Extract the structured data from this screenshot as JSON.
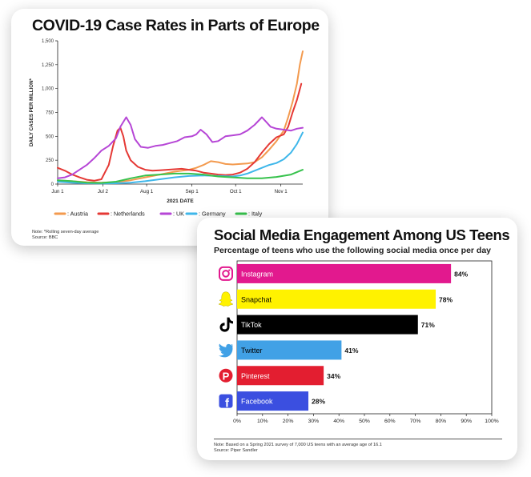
{
  "covid": {
    "title": "COVID-19 Case Rates in Parts of Europe",
    "note": "Note: *Rolling seven-day average",
    "source": "Source: BBC"
  },
  "social": {
    "title": "Social Media Engagement Among US Teens",
    "subtitle": "Percentage of teens who use the following social media once per day",
    "note": "Note: Based on a Spring 2021 survey of 7,000 US teens with an average age of 16.1",
    "source": "Source: Piper Sandler"
  },
  "chart_data": [
    {
      "type": "line",
      "title": "COVID-19 Case Rates in Parts of Europe",
      "xlabel": "2021 DATE",
      "ylabel": "DAILY CASES PER MILLION*",
      "x_ticks": [
        "Jun 1",
        "Jul 2",
        "Aug 1",
        "Sep 1",
        "Oct 1",
        "Nov 1"
      ],
      "x_range_days": [
        0,
        168
      ],
      "x_tick_days": [
        0,
        31,
        61,
        92,
        122,
        153
      ],
      "ylim": [
        0,
        1500
      ],
      "y_ticks": [
        0,
        250,
        500,
        750,
        "1,000",
        "1,250",
        "1,500"
      ],
      "grid": false,
      "legend_position": "bottom",
      "series": [
        {
          "name": ": Austria",
          "color": "#f39a4e",
          "points": [
            [
              0,
              40
            ],
            [
              10,
              30
            ],
            [
              20,
              20
            ],
            [
              30,
              15
            ],
            [
              40,
              20
            ],
            [
              50,
              40
            ],
            [
              60,
              70
            ],
            [
              70,
              100
            ],
            [
              80,
              130
            ],
            [
              90,
              150
            ],
            [
              95,
              170
            ],
            [
              100,
              200
            ],
            [
              105,
              240
            ],
            [
              110,
              230
            ],
            [
              115,
              210
            ],
            [
              120,
              205
            ],
            [
              125,
              210
            ],
            [
              130,
              215
            ],
            [
              135,
              230
            ],
            [
              140,
              280
            ],
            [
              145,
              360
            ],
            [
              150,
              450
            ],
            [
              155,
              560
            ],
            [
              158,
              700
            ],
            [
              161,
              860
            ],
            [
              164,
              1050
            ],
            [
              166,
              1250
            ],
            [
              168,
              1390
            ]
          ]
        },
        {
          "name": ": Netherlands",
          "color": "#e53935",
          "points": [
            [
              0,
              170
            ],
            [
              5,
              140
            ],
            [
              10,
              100
            ],
            [
              15,
              70
            ],
            [
              20,
              45
            ],
            [
              25,
              35
            ],
            [
              30,
              50
            ],
            [
              35,
              200
            ],
            [
              38,
              400
            ],
            [
              41,
              560
            ],
            [
              43,
              590
            ],
            [
              45,
              500
            ],
            [
              47,
              350
            ],
            [
              50,
              250
            ],
            [
              55,
              180
            ],
            [
              60,
              150
            ],
            [
              65,
              140
            ],
            [
              70,
              145
            ],
            [
              75,
              150
            ],
            [
              80,
              155
            ],
            [
              85,
              160
            ],
            [
              90,
              150
            ],
            [
              95,
              140
            ],
            [
              100,
              120
            ],
            [
              105,
              110
            ],
            [
              110,
              100
            ],
            [
              115,
              95
            ],
            [
              120,
              100
            ],
            [
              125,
              120
            ],
            [
              130,
              160
            ],
            [
              135,
              230
            ],
            [
              140,
              330
            ],
            [
              145,
              420
            ],
            [
              150,
              490
            ],
            [
              155,
              520
            ],
            [
              158,
              600
            ],
            [
              161,
              750
            ],
            [
              164,
              880
            ],
            [
              167,
              1050
            ]
          ]
        },
        {
          "name": ": UK",
          "color": "#b646d6",
          "points": [
            [
              0,
              60
            ],
            [
              5,
              70
            ],
            [
              10,
              100
            ],
            [
              15,
              150
            ],
            [
              20,
              200
            ],
            [
              25,
              270
            ],
            [
              30,
              350
            ],
            [
              35,
              400
            ],
            [
              40,
              480
            ],
            [
              43,
              600
            ],
            [
              47,
              700
            ],
            [
              50,
              620
            ],
            [
              53,
              470
            ],
            [
              57,
              390
            ],
            [
              62,
              380
            ],
            [
              67,
              400
            ],
            [
              72,
              410
            ],
            [
              77,
              430
            ],
            [
              82,
              450
            ],
            [
              87,
              490
            ],
            [
              92,
              500
            ],
            [
              95,
              520
            ],
            [
              98,
              570
            ],
            [
              102,
              520
            ],
            [
              106,
              440
            ],
            [
              110,
              450
            ],
            [
              115,
              500
            ],
            [
              120,
              510
            ],
            [
              125,
              520
            ],
            [
              130,
              560
            ],
            [
              135,
              620
            ],
            [
              140,
              700
            ],
            [
              143,
              650
            ],
            [
              146,
              600
            ],
            [
              150,
              580
            ],
            [
              155,
              570
            ],
            [
              160,
              560
            ],
            [
              164,
              580
            ],
            [
              168,
              590
            ]
          ]
        },
        {
          "name": ": Germany",
          "color": "#3fb7ea",
          "points": [
            [
              0,
              25
            ],
            [
              10,
              15
            ],
            [
              20,
              8
            ],
            [
              30,
              6
            ],
            [
              40,
              8
            ],
            [
              50,
              15
            ],
            [
              60,
              30
            ],
            [
              70,
              50
            ],
            [
              80,
              70
            ],
            [
              90,
              85
            ],
            [
              100,
              90
            ],
            [
              110,
              85
            ],
            [
              120,
              80
            ],
            [
              125,
              90
            ],
            [
              130,
              110
            ],
            [
              135,
              140
            ],
            [
              140,
              170
            ],
            [
              145,
              200
            ],
            [
              150,
              220
            ],
            [
              155,
              260
            ],
            [
              160,
              330
            ],
            [
              164,
              420
            ],
            [
              168,
              540
            ]
          ]
        },
        {
          "name": ": Italy",
          "color": "#37c24d",
          "points": [
            [
              0,
              40
            ],
            [
              10,
              30
            ],
            [
              20,
              15
            ],
            [
              30,
              12
            ],
            [
              40,
              25
            ],
            [
              50,
              60
            ],
            [
              60,
              90
            ],
            [
              70,
              100
            ],
            [
              80,
              110
            ],
            [
              90,
              110
            ],
            [
              100,
              100
            ],
            [
              110,
              80
            ],
            [
              120,
              70
            ],
            [
              130,
              60
            ],
            [
              140,
              60
            ],
            [
              150,
              75
            ],
            [
              160,
              100
            ],
            [
              168,
              150
            ]
          ]
        }
      ]
    },
    {
      "type": "bar",
      "orientation": "horizontal",
      "title": "Social Media Engagement Among US Teens",
      "subtitle": "Percentage of teens who use the following social media once per day",
      "categories": [
        "Instagram",
        "Snapchat",
        "TikTok",
        "Twitter",
        "Pinterest",
        "Facebook"
      ],
      "values": [
        84,
        78,
        71,
        41,
        34,
        28
      ],
      "value_labels": [
        "84%",
        "78%",
        "71%",
        "41%",
        "34%",
        "28%"
      ],
      "colors": [
        "#e2198e",
        "#fff200",
        "#000000",
        "#41a1e6",
        "#e31e30",
        "#3b4fe0"
      ],
      "label_colors": [
        "#ffffff",
        "#000000",
        "#ffffff",
        "#000000",
        "#ffffff",
        "#ffffff"
      ],
      "icons": [
        "instagram-icon",
        "snapchat-icon",
        "tiktok-icon",
        "twitter-icon",
        "pinterest-icon",
        "facebook-icon"
      ],
      "x_ticks": [
        "0%",
        "10%",
        "20%",
        "30%",
        "40%",
        "50%",
        "60%",
        "70%",
        "80%",
        "90%",
        "100%"
      ],
      "xlim": [
        0,
        100
      ],
      "grid": false
    }
  ]
}
